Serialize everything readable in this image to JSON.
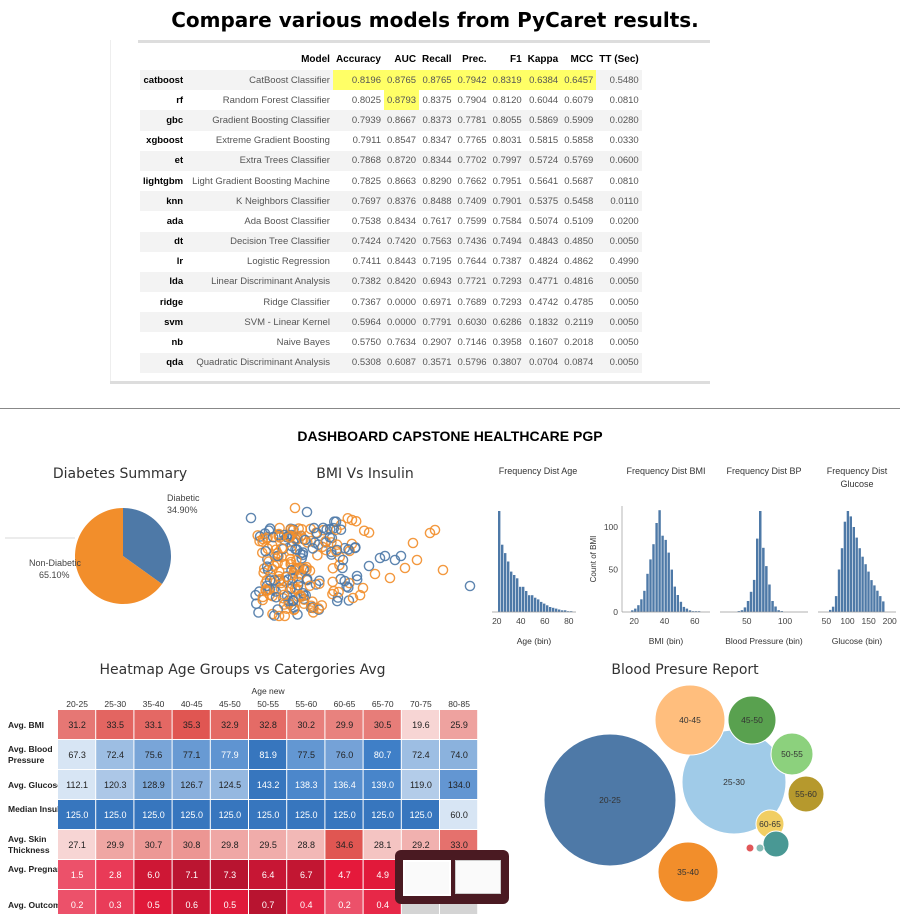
{
  "header": {
    "title": "Compare various models from PyCaret results."
  },
  "pycaret": {
    "columns": [
      "Model",
      "Accuracy",
      "AUC",
      "Recall",
      "Prec.",
      "F1",
      "Kappa",
      "MCC",
      "TT (Sec)"
    ],
    "rows": [
      {
        "key": "catboost",
        "cells": [
          "CatBoost Classifier",
          "0.8196",
          "0.8765",
          "0.8765",
          "0.7942",
          "0.8319",
          "0.6384",
          "0.6457",
          "0.5480"
        ]
      },
      {
        "key": "rf",
        "cells": [
          "Random Forest Classifier",
          "0.8025",
          "0.8793",
          "0.8375",
          "0.7904",
          "0.8120",
          "0.6044",
          "0.6079",
          "0.0810"
        ]
      },
      {
        "key": "gbc",
        "cells": [
          "Gradient Boosting Classifier",
          "0.7939",
          "0.8667",
          "0.8373",
          "0.7781",
          "0.8055",
          "0.5869",
          "0.5909",
          "0.0280"
        ]
      },
      {
        "key": "xgboost",
        "cells": [
          "Extreme Gradient Boosting",
          "0.7911",
          "0.8547",
          "0.8347",
          "0.7765",
          "0.8031",
          "0.5815",
          "0.5858",
          "0.0330"
        ]
      },
      {
        "key": "et",
        "cells": [
          "Extra Trees Classifier",
          "0.7868",
          "0.8720",
          "0.8344",
          "0.7702",
          "0.7997",
          "0.5724",
          "0.5769",
          "0.0600"
        ]
      },
      {
        "key": "lightgbm",
        "cells": [
          "Light Gradient Boosting Machine",
          "0.7825",
          "0.8663",
          "0.8290",
          "0.7662",
          "0.7951",
          "0.5641",
          "0.5687",
          "0.0810"
        ]
      },
      {
        "key": "knn",
        "cells": [
          "K Neighbors Classifier",
          "0.7697",
          "0.8376",
          "0.8488",
          "0.7409",
          "0.7901",
          "0.5375",
          "0.5458",
          "0.0110"
        ]
      },
      {
        "key": "ada",
        "cells": [
          "Ada Boost Classifier",
          "0.7538",
          "0.8434",
          "0.7617",
          "0.7599",
          "0.7584",
          "0.5074",
          "0.5109",
          "0.0200"
        ]
      },
      {
        "key": "dt",
        "cells": [
          "Decision Tree Classifier",
          "0.7424",
          "0.7420",
          "0.7563",
          "0.7436",
          "0.7494",
          "0.4843",
          "0.4850",
          "0.0050"
        ]
      },
      {
        "key": "lr",
        "cells": [
          "Logistic Regression",
          "0.7411",
          "0.8443",
          "0.7195",
          "0.7644",
          "0.7387",
          "0.4824",
          "0.4862",
          "0.4990"
        ]
      },
      {
        "key": "lda",
        "cells": [
          "Linear Discriminant Analysis",
          "0.7382",
          "0.8420",
          "0.6943",
          "0.7721",
          "0.7293",
          "0.4771",
          "0.4816",
          "0.0050"
        ]
      },
      {
        "key": "ridge",
        "cells": [
          "Ridge Classifier",
          "0.7367",
          "0.0000",
          "0.6971",
          "0.7689",
          "0.7293",
          "0.4742",
          "0.4785",
          "0.0050"
        ]
      },
      {
        "key": "svm",
        "cells": [
          "SVM - Linear Kernel",
          "0.5964",
          "0.0000",
          "0.7791",
          "0.6030",
          "0.6286",
          "0.1832",
          "0.2119",
          "0.0050"
        ]
      },
      {
        "key": "nb",
        "cells": [
          "Naive Bayes",
          "0.5750",
          "0.7634",
          "0.2907",
          "0.7146",
          "0.3958",
          "0.1607",
          "0.2018",
          "0.0050"
        ]
      },
      {
        "key": "qda",
        "cells": [
          "Quadratic Discriminant Analysis",
          "0.5308",
          "0.6087",
          "0.3571",
          "0.5796",
          "0.3807",
          "0.0704",
          "0.0874",
          "0.0050"
        ]
      }
    ]
  },
  "dashboard": {
    "title": "DASHBOARD CAPSTONE HEALTHCARE PGP"
  },
  "chart_data": [
    {
      "type": "pie",
      "title": "Diabetes Summary",
      "slices": [
        {
          "label": "Diabetic",
          "value": 34.9,
          "display": "34.90%",
          "color": "#4e79a7"
        },
        {
          "label": "Non-Diabetic",
          "value": 65.1,
          "display": "65.10%",
          "color": "#f28e2b"
        }
      ]
    },
    {
      "type": "scatter",
      "title": "BMI Vs Insulin",
      "colors": [
        "#f28e2b",
        "#4e79a7"
      ]
    },
    {
      "type": "bar",
      "title": "Frequency Dist Age",
      "xlabel": "Age (bin)",
      "ticks": [
        "20",
        "40",
        "60",
        "80"
      ],
      "xlim": [
        16,
        86
      ],
      "bin_width": 2.5,
      "bin_start": 21,
      "values": [
        120,
        80,
        70,
        60,
        48,
        44,
        40,
        30,
        30,
        25,
        20,
        20,
        17,
        15,
        12,
        10,
        8,
        6,
        5,
        4,
        3,
        2,
        2,
        1,
        1
      ]
    },
    {
      "type": "bar",
      "title": "Frequency Dist BMI",
      "xlabel": "BMI (bin)",
      "ylabel": "Count of BMI",
      "yticks": [
        "0",
        "50",
        "100"
      ],
      "ticks": [
        "20",
        "40",
        "60"
      ],
      "xlim": [
        12,
        70
      ],
      "ylim": [
        0,
        125
      ],
      "bin_start": 18,
      "bin_width": 2,
      "values": [
        2,
        4,
        8,
        15,
        25,
        45,
        62,
        80,
        105,
        120,
        90,
        85,
        70,
        50,
        30,
        20,
        12,
        6,
        4,
        2,
        1,
        1,
        1
      ]
    },
    {
      "type": "bar",
      "title": "Frequency Dist BP",
      "xlabel": "Blood Pressure (bin)",
      "ticks": [
        "50",
        "100"
      ],
      "xlim": [
        15,
        130
      ],
      "bin_start": 38,
      "bin_width": 4,
      "values": [
        1,
        2,
        5,
        12,
        22,
        35,
        80,
        110,
        70,
        50,
        30,
        12,
        6,
        2,
        1
      ]
    },
    {
      "type": "bar",
      "title": "Frequency Dist Glucose",
      "xlabel": "Glucose (bin)",
      "ticks": [
        "50",
        "100",
        "150",
        "200"
      ],
      "xlim": [
        30,
        215
      ],
      "bin_start": 56,
      "bin_width": 7,
      "values": [
        2,
        5,
        15,
        40,
        60,
        85,
        95,
        90,
        80,
        70,
        60,
        52,
        45,
        38,
        30,
        25,
        20,
        15,
        10
      ]
    },
    {
      "type": "heatmap",
      "title": "Heatmap Age Groups vs Catergories Avg",
      "xlabel": "Age new",
      "columns": [
        "20-25",
        "25-30",
        "35-40",
        "40-45",
        "45-50",
        "50-55",
        "55-60",
        "60-65",
        "65-70",
        "70-75",
        "80-85"
      ],
      "rows": [
        {
          "label": "Avg. BMI",
          "values": [
            "31.2",
            "33.5",
            "33.1",
            "35.3",
            "32.9",
            "32.8",
            "30.2",
            "29.9",
            "30.5",
            "19.6",
            "25.9"
          ],
          "color": "red"
        },
        {
          "label": "Avg. Blood Pressure",
          "values": [
            "67.3",
            "72.4",
            "75.6",
            "77.1",
            "77.9",
            "81.9",
            "77.5",
            "76.0",
            "80.7",
            "72.4",
            "74.0"
          ],
          "color": "blue"
        },
        {
          "label": "Avg. Glucose",
          "values": [
            "112.1",
            "120.3",
            "128.9",
            "126.7",
            "124.5",
            "143.2",
            "138.3",
            "136.4",
            "139.0",
            "119.0",
            "134.0"
          ],
          "color": "blue"
        },
        {
          "label": "Median Insulin",
          "values": [
            "125.0",
            "125.0",
            "125.0",
            "125.0",
            "125.0",
            "125.0",
            "125.0",
            "125.0",
            "125.0",
            "125.0",
            "60.0"
          ],
          "color": "blue"
        },
        {
          "label": "Avg. Skin Thickness",
          "values": [
            "27.1",
            "29.9",
            "30.7",
            "30.8",
            "29.8",
            "29.5",
            "28.8",
            "34.6",
            "28.1",
            "29.2",
            "33.0"
          ],
          "color": "red"
        },
        {
          "label": "Avg. Pregnancies",
          "values": [
            "1.5",
            "2.8",
            "6.0",
            "7.1",
            "7.3",
            "6.4",
            "6.7",
            "4.7",
            "4.9",
            "",
            ""
          ],
          "color": "crimson"
        },
        {
          "label": "Avg. Outcome",
          "values": [
            "0.2",
            "0.3",
            "0.5",
            "0.6",
            "0.5",
            "0.7",
            "0.4",
            "0.2",
            "0.4",
            "",
            ""
          ],
          "color": "crimson"
        }
      ]
    },
    {
      "type": "bubble",
      "title": "Blood Presure Report",
      "bubbles": [
        {
          "label": "20-25",
          "color": "#4e79a7"
        },
        {
          "label": "25-30",
          "color": "#a0cbe8"
        },
        {
          "label": "40-45",
          "color": "#ffbe7d"
        },
        {
          "label": "45-50",
          "color": "#59a14f"
        },
        {
          "label": "50-55",
          "color": "#8cd17d"
        },
        {
          "label": "55-60",
          "color": "#b6992d"
        },
        {
          "label": "60-65",
          "color": "#f1ce63"
        },
        {
          "label": "35-40",
          "color": "#f28e2b"
        },
        {
          "label": "",
          "color": "#499894"
        },
        {
          "label": "",
          "color": "#e15759"
        },
        {
          "label": "",
          "color": "#86bcb6"
        }
      ]
    }
  ]
}
